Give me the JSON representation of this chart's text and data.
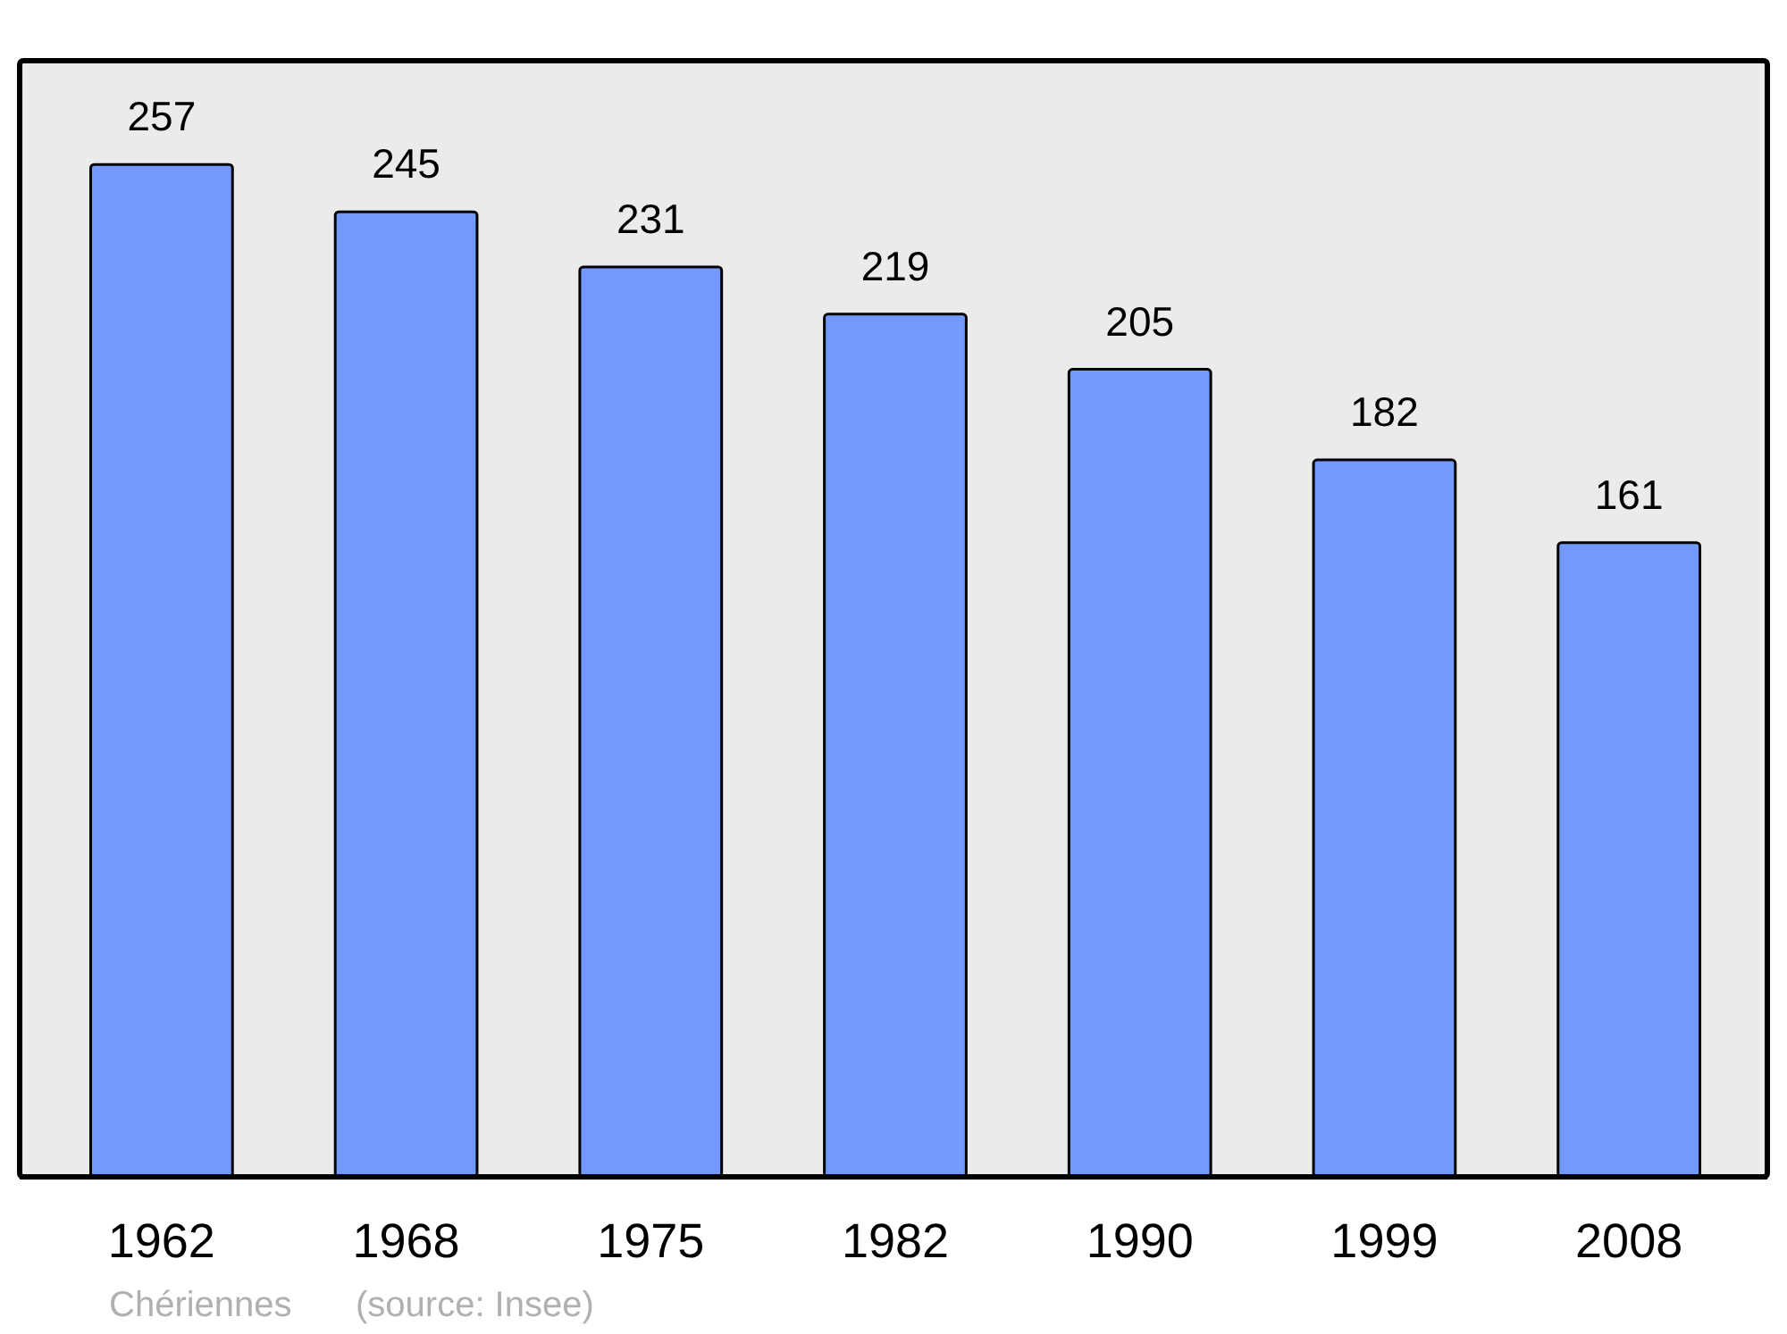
{
  "chart_data": {
    "type": "bar",
    "categories": [
      "1962",
      "1968",
      "1975",
      "1982",
      "1990",
      "1999",
      "2008"
    ],
    "values": [
      257,
      245,
      231,
      219,
      205,
      182,
      161
    ],
    "color": "#7399ff",
    "data_labels": true,
    "annotations": [
      "Chériennes",
      "(source: Insee)"
    ]
  }
}
